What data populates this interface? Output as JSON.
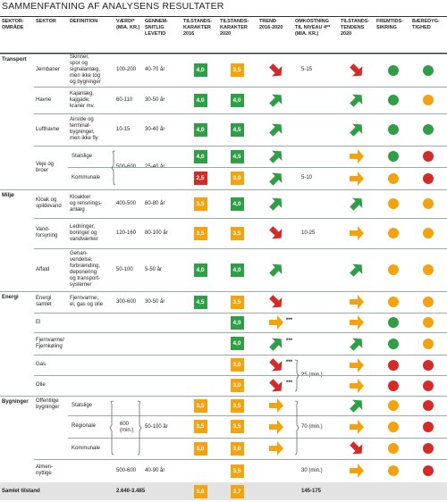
{
  "title": "SAMMENFATNING AF ANALYSENS RESULTATER",
  "header": [
    "SEKTOR-\nOMRÅDE",
    "SEKTOR",
    "DEFINITION",
    "VÆRDI*\n(MIA. KR.)",
    "GENNEM-\nSNITLIG\nLEVETID",
    "TILSTANDS-\nKARAKTER\n2016",
    "TILSTANDS-\nKARAKTER\n2020",
    "TREND\n2016-2020",
    "OMKOSTNING\nTIL NIVEAU 4**\n(MIA. KR.)",
    "TILSTANDS-\nTENDENS\n2020",
    "FREMTIDS-\nSIKRING",
    "BÆREDYG-\nTIGHED"
  ],
  "rows": [
    {
      "a": "Transport",
      "s": "Jernbaner",
      "d": "Skinner,\nspor og\nsignalanlæg,\nmen ikke tog\nog bygninger",
      "v": "100-200",
      "l": "40-70 år",
      "k16": "4,0",
      "c16": "green",
      "k20": "3,5",
      "c20": "orange",
      "t": "down",
      "tc": "red",
      "o": "5-15",
      "td": "down",
      "tdc": "red",
      "f": "green",
      "b": "green"
    },
    {
      "s": "Havne",
      "d": "Kajanlæg,\nkajgade,\nkraner mv.",
      "v": "60-110",
      "l": "30-50 år",
      "k16": "4,0",
      "c16": "green",
      "k20": "4,0",
      "c20": "green",
      "t": "up",
      "tc": "green",
      "td": "up",
      "tdc": "green",
      "f": "green",
      "b": "orange"
    },
    {
      "s": "Lufthavne",
      "d": "Airside og\nterminal-\nbygninger,\nmen ikke fly",
      "v": "10-15",
      "l": "30-40 år",
      "k16": "4,0",
      "c16": "green",
      "k20": "4,5",
      "c20": "green",
      "t": "up",
      "tc": "green",
      "td": "up",
      "tdc": "green",
      "f": "green",
      "b": "green"
    },
    {
      "s": "Veje og\nbroer",
      "sub": "Statslige",
      "v": "500-600",
      "l": "25-40 år",
      "k16": "4,0",
      "c16": "green",
      "k20": "4,5",
      "c20": "green",
      "t": "up",
      "tc": "green",
      "td": "right",
      "tdc": "orange",
      "f": "green",
      "b": "red"
    },
    {
      "sub": "Kommunale",
      "k16": "2,5",
      "c16": "red",
      "k20": "3,0",
      "c20": "orange",
      "t": "up",
      "tc": "green",
      "o": "5-10",
      "td": "right",
      "tdc": "orange",
      "f": "orange",
      "b": "red"
    },
    {
      "a": "Miljø",
      "s": "Kloak og\nspildevand",
      "d": "Kloakker\nog rensnings-\nanlæg",
      "v": "400-500",
      "l": "60-80 år",
      "k16": "3,5",
      "c16": "orange",
      "k20": "4,0",
      "c20": "green",
      "t": "up",
      "tc": "green",
      "td": "up",
      "tdc": "green",
      "f": "orange",
      "b": "orange"
    },
    {
      "s": "Vand-\nforsyning",
      "d": "Ledninger,\nboringer og\nvandværker",
      "v": "120-160",
      "l": "80-100 år",
      "k16": "3,5",
      "c16": "orange",
      "k20": "3,5",
      "c20": "orange",
      "t": "down",
      "tc": "red",
      "o": "10-25",
      "td": "right",
      "tdc": "orange",
      "f": "orange",
      "b": "orange"
    },
    {
      "s": "Affald",
      "d": "Genan-\nvendelse,\nforbrænding,\ndeponering\nog transport-\nsystemer",
      "v": "50-100",
      "l": "5-50 år",
      "k16": "4,0",
      "c16": "green",
      "k20": "4,0",
      "c20": "green",
      "t": "up",
      "tc": "green",
      "td": "up",
      "tdc": "green",
      "f": "orange",
      "b": "orange"
    },
    {
      "a": "Energi",
      "s": "Energi\nsamlet",
      "d": "Fjernvarme,\nel, gas og olie",
      "v": "300-600",
      "l": "30-50 år",
      "k16": "4,5",
      "c16": "green",
      "k20": "3,5",
      "c20": "orange",
      "t": "down",
      "tc": "red",
      "td": "right",
      "tdc": "orange",
      "f": "orange",
      "b": "orange"
    },
    {
      "s": "El",
      "k20": "4,0",
      "c20": "green",
      "t": "right",
      "tc": "orange",
      "n": "***",
      "td": "right",
      "tdc": "orange",
      "f": "green",
      "b": "orange"
    },
    {
      "s": "Fjernvarme/\nFjernkøling",
      "k20": "4,0",
      "c20": "green",
      "t": "up",
      "tc": "green",
      "n": "***",
      "td": "up",
      "tdc": "green",
      "f": "green",
      "b": "orange"
    },
    {
      "s": "Gas",
      "k20": "3,0",
      "c20": "orange",
      "t": "down",
      "tc": "red",
      "n": "***",
      "o": "25 (min.)",
      "td": "right",
      "tdc": "orange",
      "f": "red",
      "b": "red"
    },
    {
      "s": "Olie",
      "k20": "3,0",
      "c20": "orange",
      "t": "down",
      "tc": "red",
      "n": "***",
      "td": "right",
      "tdc": "orange",
      "f": "red",
      "b": "red"
    },
    {
      "a": "Bygninger",
      "s": "Offentlige\nbygninger",
      "sub": "Statslige",
      "v": "600\n(min.)",
      "l": "50-100 år",
      "k16": "3,5",
      "c16": "orange",
      "k20": "3,5",
      "c20": "orange",
      "t": "right",
      "tc": "orange",
      "o": "70 (min.)",
      "td": "up",
      "tdc": "green",
      "f": "orange",
      "b": "red"
    },
    {
      "sub": "Regionale",
      "k16": "3,5",
      "c16": "orange",
      "k20": "3,5",
      "c20": "orange",
      "t": "right",
      "tc": "orange",
      "td": "right",
      "tdc": "orange",
      "f": "orange",
      "b": "red"
    },
    {
      "sub": "Kommunale",
      "k16": "3,0",
      "c16": "orange",
      "k20": "3,0",
      "c20": "orange",
      "t": "right",
      "tc": "orange",
      "td": "down",
      "tdc": "red",
      "f": "orange",
      "b": "red"
    },
    {
      "s": "Almen-\nnyttige",
      "v": "500-600",
      "l": "40-90 år",
      "k20": "3,5",
      "c20": "orange",
      "o": "30 (min.)",
      "td": "right",
      "tdc": "orange",
      "f": "orange",
      "b": "red"
    }
  ],
  "total": {
    "label": "Samlet tilstand",
    "v": "2.640-3.485",
    "k16": "3,8",
    "c16": "orange",
    "k20": "3,7",
    "c20": "orange",
    "o": "145-175"
  }
}
